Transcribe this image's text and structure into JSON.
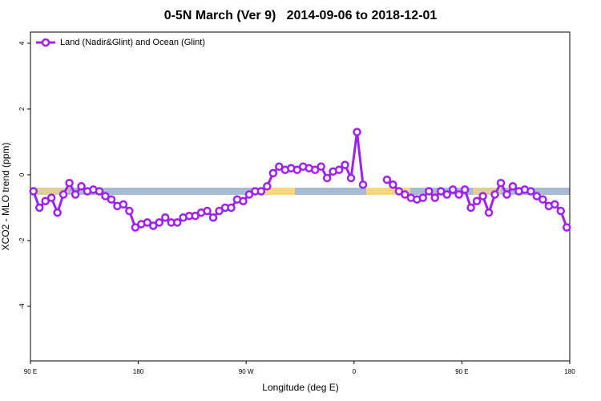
{
  "chart_data": {
    "type": "line",
    "title": "0-5N March (Ver 9)   2014-09-06 to 2018-12-01",
    "x_label": "Longitude (deg E)",
    "y_label": "XCO2 - MLO trend (ppm)",
    "xlim": [
      90,
      540
    ],
    "ylim": [
      -5.66,
      4.34
    ],
    "xticks": [
      {
        "value": 90,
        "label": "90 E"
      },
      180,
      {
        "value": 270,
        "label": "90 W"
      },
      {
        "value": 360,
        "label": "0"
      },
      {
        "value": 450,
        "label": "90 E"
      },
      {
        "value": 540,
        "label": "180"
      }
    ],
    "yticks": [
      -4,
      -2,
      0,
      2,
      4
    ],
    "legend": "top-left",
    "x": [
      92.5,
      97.5,
      102.5,
      107.5,
      112.5,
      117.5,
      122.5,
      127.5,
      132.5,
      137.5,
      142.5,
      147.5,
      152.5,
      157.5,
      162.5,
      167.5,
      172.5,
      177.5,
      182.5,
      187.5,
      192.5,
      197.5,
      202.5,
      207.5,
      212.5,
      217.5,
      222.5,
      227.5,
      232.5,
      237.5,
      242.5,
      247.5,
      252.5,
      257.5,
      262.5,
      267.5,
      272.5,
      277.5,
      282.5,
      287.5,
      292.5,
      297.5,
      302.5,
      307.5,
      312.5,
      317.5,
      322.5,
      327.5,
      332.5,
      337.5,
      342.5,
      347.5,
      352.5,
      357.5,
      362.5,
      367.5,
      372.5,
      377.5,
      382.5,
      387.5,
      392.5,
      397.5,
      402.5,
      407.5,
      412.5,
      417.5,
      422.5,
      427.5,
      432.5,
      437.5,
      442.5,
      447.5,
      452.5,
      457.5,
      462.5,
      467.5,
      472.5,
      477.5,
      482.5,
      487.5,
      492.5,
      497.5,
      502.5,
      507.5,
      512.5,
      517.5,
      522.5,
      527.5,
      532.5,
      537.5
    ],
    "series": [
      {
        "name": "Land (Nadir&Glint) and Ocean (Glint)",
        "color": "#a020f0",
        "values": [
          -0.5,
          -1.0,
          -0.8,
          -0.7,
          -1.15,
          -0.6,
          -0.25,
          -0.6,
          -0.35,
          -0.5,
          -0.45,
          -0.5,
          -0.65,
          -0.75,
          -0.95,
          -0.9,
          -1.1,
          -1.6,
          -1.5,
          -1.45,
          -1.55,
          -1.45,
          -1.3,
          -1.45,
          -1.45,
          -1.3,
          -1.25,
          -1.25,
          -1.15,
          -1.1,
          -1.3,
          -1.1,
          -1.0,
          -1.0,
          -0.75,
          -0.8,
          -0.6,
          -0.5,
          -0.5,
          -0.35,
          0.05,
          0.25,
          0.15,
          0.2,
          0.15,
          0.25,
          0.2,
          0.15,
          0.25,
          -0.1,
          0.1,
          0.15,
          0.3,
          -0.1,
          1.3,
          -0.3,
          null,
          null,
          null,
          -0.15,
          -0.3,
          -0.5,
          -0.6,
          -0.7,
          -0.75,
          -0.7,
          -0.5,
          -0.7,
          -0.5,
          -0.6,
          -0.45,
          -0.6,
          -0.45,
          -1.0,
          -0.8,
          -0.65,
          -1.15,
          -0.6,
          -0.25,
          -0.6,
          -0.35,
          -0.5,
          -0.45,
          -0.5,
          -0.65,
          -0.75,
          -0.95,
          -0.9,
          -1.1,
          -1.6
        ]
      }
    ]
  }
}
